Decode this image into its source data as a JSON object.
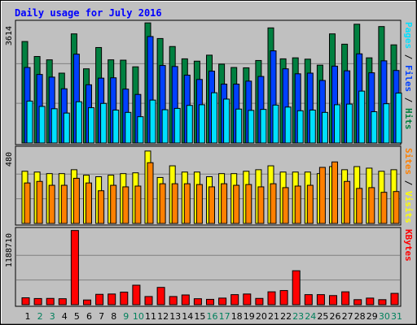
{
  "title": "Daily usage for July 2016",
  "colors": {
    "title": "#0000ff",
    "hits": "#008040",
    "files": "#0040ff",
    "pages": "#00e0ff",
    "visits": "#ffff00",
    "sites": "#ff8000",
    "kbytes": "#ff0000",
    "weekday_label": "#000000",
    "weekend_label": "#00805c",
    "panel_bg": "#c0c0c0",
    "frame_bg": "#c0c0c0"
  },
  "chart_data": [
    {
      "type": "bar",
      "panel": "top",
      "ymax_label": "3614",
      "ylim": [
        0,
        3614
      ],
      "right_label": [
        {
          "text": "Pages",
          "color": "#00e0ff"
        },
        {
          "text": " / ",
          "color": "#000000"
        },
        {
          "text": "Files",
          "color": "#0040ff"
        },
        {
          "text": " / ",
          "color": "#000000"
        },
        {
          "text": "Hits",
          "color": "#008040"
        }
      ],
      "series": [
        {
          "name": "Hits",
          "values": [
            3050,
            2600,
            2500,
            2100,
            3280,
            2230,
            2870,
            2500,
            2490,
            2290,
            3610,
            3140,
            2900,
            2530,
            2460,
            2640,
            2370,
            2270,
            2260,
            2480,
            3460,
            2530,
            2560,
            2520,
            2340,
            3280,
            2970,
            3570,
            2560,
            3500,
            2950
          ]
        },
        {
          "name": "Files",
          "values": [
            2270,
            2060,
            1980,
            1630,
            2670,
            1750,
            1950,
            1960,
            1620,
            1460,
            3200,
            2330,
            2300,
            2040,
            1910,
            2160,
            1770,
            1770,
            1860,
            2000,
            2770,
            2230,
            2080,
            2100,
            1880,
            2310,
            2170,
            2680,
            2110,
            2470,
            2180
          ]
        },
        {
          "name": "Pages",
          "values": [
            1260,
            1100,
            1030,
            900,
            1240,
            1060,
            1190,
            990,
            920,
            790,
            1290,
            1000,
            1040,
            1130,
            1150,
            1510,
            1320,
            1020,
            980,
            1010,
            1140,
            1080,
            970,
            990,
            920,
            1150,
            1170,
            1560,
            940,
            1180,
            1500
          ]
        }
      ]
    },
    {
      "type": "bar",
      "panel": "middle",
      "ymax_label": "480",
      "ylim": [
        0,
        480
      ],
      "right_label": [
        {
          "text": "Sites",
          "color": "#ff8000"
        },
        {
          "text": " / ",
          "color": "#000000"
        },
        {
          "text": "Visits",
          "color": "#ffff00"
        }
      ],
      "series": [
        {
          "name": "Visits",
          "values": [
            335,
            330,
            320,
            320,
            345,
            310,
            300,
            310,
            320,
            325,
            465,
            295,
            370,
            330,
            330,
            300,
            320,
            320,
            335,
            345,
            370,
            330,
            330,
            330,
            320,
            365,
            345,
            365,
            355,
            335,
            345
          ]
        },
        {
          "name": "Sites",
          "values": [
            260,
            270,
            245,
            245,
            290,
            260,
            210,
            245,
            235,
            240,
            390,
            255,
            255,
            255,
            250,
            235,
            255,
            245,
            250,
            235,
            255,
            230,
            240,
            245,
            360,
            395,
            270,
            225,
            230,
            200,
            205
          ]
        }
      ]
    },
    {
      "type": "bar",
      "panel": "bottom",
      "ymax_label": "1188710",
      "ylim": [
        0,
        1188710
      ],
      "right_label": [
        {
          "text": "KBytes",
          "color": "#ff0000"
        }
      ],
      "series": [
        {
          "name": "KBytes",
          "values": [
            110000,
            98000,
            100000,
            95000,
            1180000,
            75000,
            165000,
            170000,
            200000,
            310000,
            130000,
            275000,
            130000,
            155000,
            95000,
            85000,
            105000,
            160000,
            170000,
            100000,
            205000,
            225000,
            540000,
            160000,
            160000,
            145000,
            205000,
            80000,
            105000,
            80000,
            180000
          ]
        }
      ]
    }
  ],
  "days": [
    "1",
    "2",
    "3",
    "4",
    "5",
    "6",
    "7",
    "8",
    "9",
    "10",
    "11",
    "12",
    "13",
    "14",
    "15",
    "16",
    "17",
    "18",
    "19",
    "20",
    "21",
    "22",
    "23",
    "24",
    "25",
    "26",
    "27",
    "28",
    "29",
    "30",
    "31"
  ],
  "weekend_days": [
    2,
    3,
    9,
    10,
    16,
    17,
    23,
    24,
    30,
    31
  ]
}
